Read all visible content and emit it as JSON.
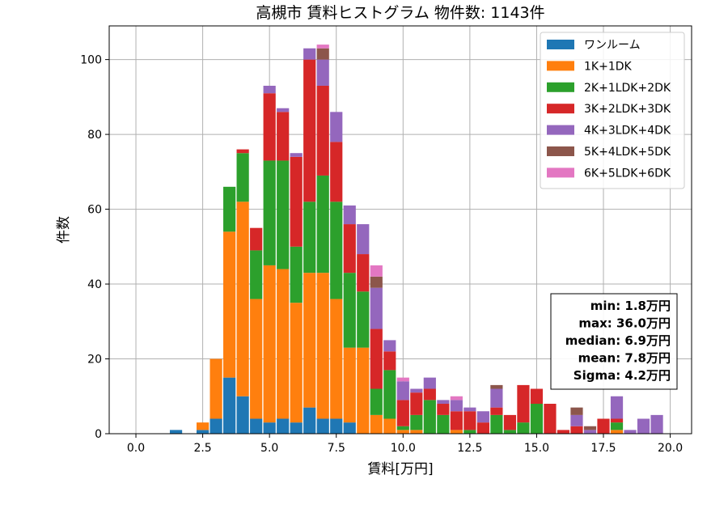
{
  "chart_data": {
    "type": "bar",
    "stacked": true,
    "title": "高槻市 賃料ヒストグラム 物件数: 1143件",
    "xlabel": "賃料[万円]",
    "ylabel": "件数",
    "xlim": [
      -1.0,
      20.8
    ],
    "ylim": [
      0,
      109
    ],
    "x_ticks": [
      "0.0",
      "2.5",
      "5.0",
      "7.5",
      "10.0",
      "12.5",
      "15.0",
      "17.5",
      "20.0"
    ],
    "y_ticks": [
      "0",
      "20",
      "40",
      "60",
      "80",
      "100"
    ],
    "grid": true,
    "legend_position": "top-right",
    "bin_width": 0.5,
    "x": [
      1.5,
      2.0,
      2.5,
      3.0,
      3.5,
      4.0,
      4.5,
      5.0,
      5.5,
      6.0,
      6.5,
      7.0,
      7.5,
      8.0,
      8.5,
      9.0,
      9.5,
      10.0,
      10.5,
      11.0,
      11.5,
      12.0,
      12.5,
      13.0,
      13.5,
      14.0,
      14.5,
      15.0,
      15.5,
      16.0,
      16.5,
      17.0,
      17.5,
      18.0,
      18.5,
      19.0,
      19.5
    ],
    "series": [
      {
        "name": "ワンルーム",
        "color": "#1f77b4",
        "values": [
          1,
          0,
          1,
          4,
          15,
          10,
          4,
          3,
          4,
          3,
          7,
          4,
          4,
          3,
          0,
          0,
          0,
          0,
          0,
          0,
          0,
          0,
          0,
          0,
          0,
          0,
          0,
          0,
          0,
          0,
          0,
          0,
          0,
          0,
          0,
          0,
          0
        ]
      },
      {
        "name": "1K+1DK",
        "color": "#ff7f0e",
        "values": [
          0,
          0,
          2,
          16,
          39,
          52,
          32,
          42,
          40,
          32,
          36,
          39,
          32,
          20,
          23,
          5,
          4,
          1,
          1,
          0,
          0,
          1,
          0,
          0,
          0,
          0,
          0,
          0,
          0,
          0,
          0,
          0,
          0,
          1,
          0,
          0,
          0
        ]
      },
      {
        "name": "2K+1LDK+2DK",
        "color": "#2ca02c",
        "values": [
          0,
          0,
          0,
          0,
          12,
          13,
          13,
          28,
          29,
          15,
          19,
          26,
          26,
          20,
          15,
          7,
          13,
          1,
          4,
          9,
          5,
          0,
          1,
          0,
          5,
          1,
          3,
          8,
          0,
          0,
          0,
          0,
          0,
          2,
          0,
          0,
          0
        ]
      },
      {
        "name": "3K+2LDK+3DK",
        "color": "#d62728",
        "values": [
          0,
          0,
          0,
          0,
          0,
          1,
          6,
          18,
          13,
          24,
          38,
          24,
          16,
          13,
          10,
          16,
          5,
          7,
          6,
          3,
          3,
          5,
          5,
          3,
          2,
          4,
          10,
          4,
          8,
          1,
          2,
          0,
          4,
          1,
          0,
          0,
          0
        ]
      },
      {
        "name": "4K+3LDK+4DK",
        "color": "#9467bd",
        "values": [
          0,
          0,
          0,
          0,
          0,
          0,
          0,
          2,
          1,
          1,
          3,
          7,
          8,
          5,
          8,
          11,
          3,
          5,
          1,
          3,
          1,
          3,
          1,
          3,
          5,
          0,
          0,
          0,
          0,
          0,
          3,
          1,
          0,
          6,
          1,
          4,
          5
        ]
      },
      {
        "name": "5K+4LDK+5DK",
        "color": "#8c564b",
        "values": [
          0,
          0,
          0,
          0,
          0,
          0,
          0,
          0,
          0,
          0,
          0,
          3,
          0,
          0,
          0,
          3,
          0,
          0,
          0,
          0,
          0,
          0,
          0,
          0,
          1,
          0,
          0,
          0,
          0,
          0,
          2,
          1,
          0,
          0,
          0,
          0,
          0
        ]
      },
      {
        "name": "6K+5LDK+6DK",
        "color": "#e377c2",
        "values": [
          0,
          0,
          0,
          0,
          0,
          0,
          0,
          0,
          0,
          0,
          0,
          1,
          0,
          0,
          0,
          3,
          0,
          1,
          0,
          0,
          0,
          1,
          0,
          0,
          0,
          0,
          0,
          0,
          0,
          0,
          0,
          0,
          0,
          0,
          0,
          0,
          0
        ]
      }
    ],
    "stats": [
      "min: 1.8万円",
      "max: 36.0万円",
      "median: 6.9万円",
      "mean: 7.8万円",
      "Sigma: 4.2万円"
    ]
  }
}
